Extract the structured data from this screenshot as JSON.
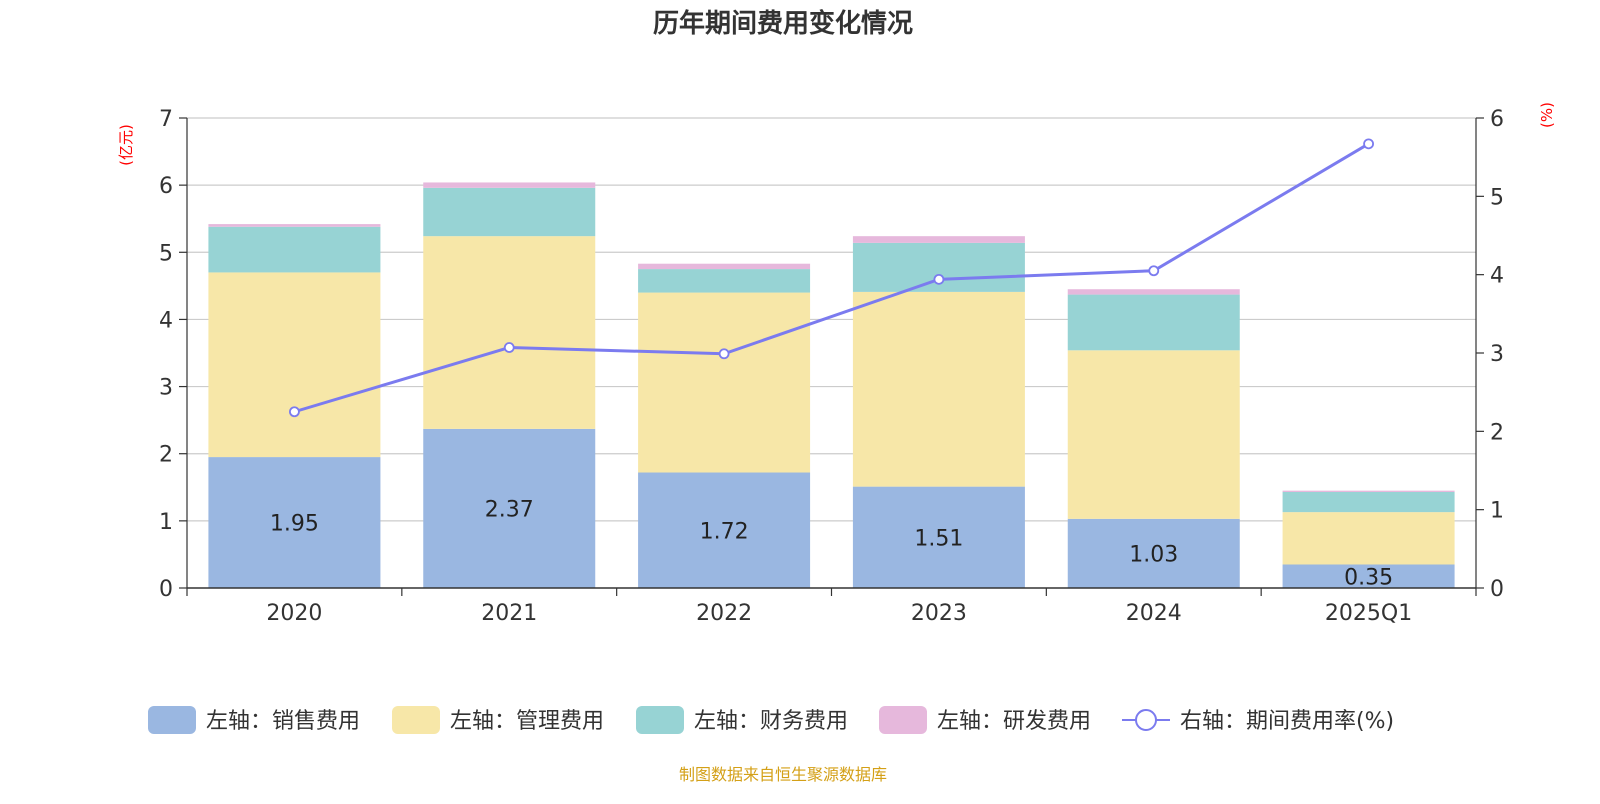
{
  "chart_data": {
    "type": "bar",
    "stacked": true,
    "title": "历年期间费用变化情况",
    "y_left_unit": "(亿元)",
    "y_right_unit": "(%)",
    "categories": [
      "2020",
      "2021",
      "2022",
      "2023",
      "2024",
      "2025Q1"
    ],
    "ylim_left": [
      0,
      7
    ],
    "yticks_left": [
      "0",
      "1",
      "2",
      "3",
      "4",
      "5",
      "6",
      "7"
    ],
    "ylim_right": [
      0,
      6
    ],
    "yticks_right": [
      "0",
      "1",
      "2",
      "3",
      "4",
      "5",
      "6"
    ],
    "grid": true,
    "legend_position": "bottom",
    "series": [
      {
        "name": "左轴：销售费用",
        "type": "bar",
        "axis": "left",
        "color": "#9ab7e1",
        "values": [
          1.95,
          2.37,
          1.72,
          1.51,
          1.03,
          0.35
        ],
        "labels": [
          "1.95",
          "2.37",
          "1.72",
          "1.51",
          "1.03",
          "0.35"
        ]
      },
      {
        "name": "左轴：管理费用",
        "type": "bar",
        "axis": "left",
        "color": "#f7e7a8",
        "values": [
          2.75,
          2.87,
          2.68,
          2.9,
          2.51,
          0.78
        ]
      },
      {
        "name": "左轴：财务费用",
        "type": "bar",
        "axis": "left",
        "color": "#97d3d4",
        "values": [
          0.68,
          0.72,
          0.35,
          0.73,
          0.83,
          0.3
        ]
      },
      {
        "name": "左轴：研发费用",
        "type": "bar",
        "axis": "left",
        "color": "#e6b8dc",
        "values": [
          0.04,
          0.08,
          0.08,
          0.1,
          0.08,
          0.02
        ]
      },
      {
        "name": "右轴：期间费用率(%)",
        "type": "line",
        "axis": "right",
        "color": "#7b7bef",
        "values": [
          2.25,
          3.07,
          2.99,
          3.94,
          4.05,
          5.67
        ]
      }
    ],
    "source": "制图数据来自恒生聚源数据库"
  }
}
